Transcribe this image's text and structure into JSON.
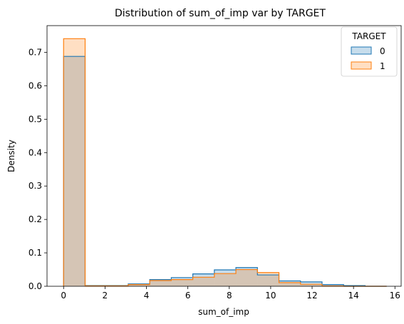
{
  "chart_data": {
    "type": "histogram",
    "title": "Distribution of sum_of_imp var by TARGET",
    "xlabel": "sum_of_imp",
    "ylabel": "Density",
    "xlim": [
      -0.8,
      16.3
    ],
    "ylim": [
      0,
      0.78
    ],
    "xticks": [
      0,
      2,
      4,
      6,
      8,
      10,
      12,
      14,
      16
    ],
    "yticks": [
      0.0,
      0.1,
      0.2,
      0.3,
      0.4,
      0.5,
      0.6,
      0.7
    ],
    "bin_edges": [
      0,
      1.04,
      2.08,
      3.12,
      4.16,
      5.2,
      6.24,
      7.28,
      8.32,
      9.36,
      10.4,
      11.44,
      12.48,
      13.52,
      14.56,
      15.6
    ],
    "legend": {
      "title": "TARGET",
      "position": "top-right"
    },
    "series": [
      {
        "name": "0",
        "edge_color": "#1f77b4",
        "fill_color": "#1f77b4",
        "values": [
          0.688,
          0.002,
          0.002,
          0.007,
          0.02,
          0.026,
          0.037,
          0.049,
          0.056,
          0.034,
          0.016,
          0.013,
          0.005,
          0.002,
          0.0
        ]
      },
      {
        "name": "1",
        "edge_color": "#ff7f0e",
        "fill_color": "#ff7f0e",
        "values": [
          0.741,
          0.001,
          0.001,
          0.005,
          0.017,
          0.02,
          0.027,
          0.038,
          0.05,
          0.041,
          0.011,
          0.006,
          0.001,
          0.0,
          0.0
        ]
      }
    ]
  }
}
